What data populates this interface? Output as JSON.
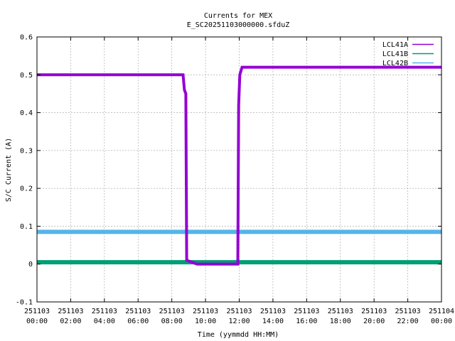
{
  "chart_data": {
    "type": "line",
    "title": "Currents for MEX",
    "subtitle": "E_SC20251103000000.sfduZ",
    "xlabel": "Time (yymmdd HH:MM)",
    "ylabel": "S/C Current (A)",
    "ylim": [
      -0.1,
      0.6
    ],
    "xlim": [
      "2025-11-03 00:00",
      "2025-11-04 00:00"
    ],
    "grid": true,
    "legend_position": "top-right",
    "y_ticks": [
      "-0.1",
      "0",
      "0.1",
      "0.2",
      "0.3",
      "0.4",
      "0.5",
      "0.6"
    ],
    "x_ticks": [
      {
        "date": "251103",
        "time": "00:00"
      },
      {
        "date": "251103",
        "time": "02:00"
      },
      {
        "date": "251103",
        "time": "04:00"
      },
      {
        "date": "251103",
        "time": "06:00"
      },
      {
        "date": "251103",
        "time": "08:00"
      },
      {
        "date": "251103",
        "time": "10:00"
      },
      {
        "date": "251103",
        "time": "12:00"
      },
      {
        "date": "251103",
        "time": "14:00"
      },
      {
        "date": "251103",
        "time": "16:00"
      },
      {
        "date": "251103",
        "time": "18:00"
      },
      {
        "date": "251103",
        "time": "20:00"
      },
      {
        "date": "251103",
        "time": "22:00"
      },
      {
        "date": "251104",
        "time": "00:00"
      }
    ],
    "series": [
      {
        "name": "LCL41A",
        "color": "#9400d3",
        "x": [
          "2025-11-03 00:00",
          "2025-11-03 01:00",
          "2025-11-03 02:00",
          "2025-11-03 03:00",
          "2025-11-03 04:00",
          "2025-11-03 05:00",
          "2025-11-03 06:00",
          "2025-11-03 07:00",
          "2025-11-03 08:00",
          "2025-11-03 08:40",
          "2025-11-03 08:45",
          "2025-11-03 08:50",
          "2025-11-03 08:53",
          "2025-11-03 09:30",
          "2025-11-03 10:30",
          "2025-11-03 11:30",
          "2025-11-03 11:55",
          "2025-11-03 11:58",
          "2025-11-03 12:02",
          "2025-11-03 12:10",
          "2025-11-03 13:00",
          "2025-11-03 14:00",
          "2025-11-03 15:00",
          "2025-11-03 16:00",
          "2025-11-03 17:00",
          "2025-11-03 18:00",
          "2025-11-03 19:00",
          "2025-11-03 20:00",
          "2025-11-03 21:00",
          "2025-11-03 22:00",
          "2025-11-03 23:00",
          "2025-11-04 00:00"
        ],
        "values": [
          0.5,
          0.5,
          0.5,
          0.5,
          0.5,
          0.5,
          0.5,
          0.5,
          0.5,
          0.5,
          0.46,
          0.45,
          0.01,
          0.0,
          0.0,
          0.0,
          0.0,
          0.42,
          0.5,
          0.52,
          0.52,
          0.52,
          0.52,
          0.52,
          0.52,
          0.52,
          0.52,
          0.52,
          0.52,
          0.52,
          0.52,
          0.52
        ]
      },
      {
        "name": "LCL41B",
        "color": "#009e73",
        "x": [
          "2025-11-03 00:00",
          "2025-11-03 06:00",
          "2025-11-03 12:00",
          "2025-11-03 18:00",
          "2025-11-04 00:00"
        ],
        "values": [
          0.005,
          0.005,
          0.005,
          0.005,
          0.005
        ]
      },
      {
        "name": "LCL42B",
        "color": "#56b4e9",
        "x": [
          "2025-11-03 00:00",
          "2025-11-03 06:00",
          "2025-11-03 12:00",
          "2025-11-03 18:00",
          "2025-11-04 00:00"
        ],
        "values": [
          0.085,
          0.085,
          0.085,
          0.085,
          0.085
        ]
      }
    ]
  }
}
